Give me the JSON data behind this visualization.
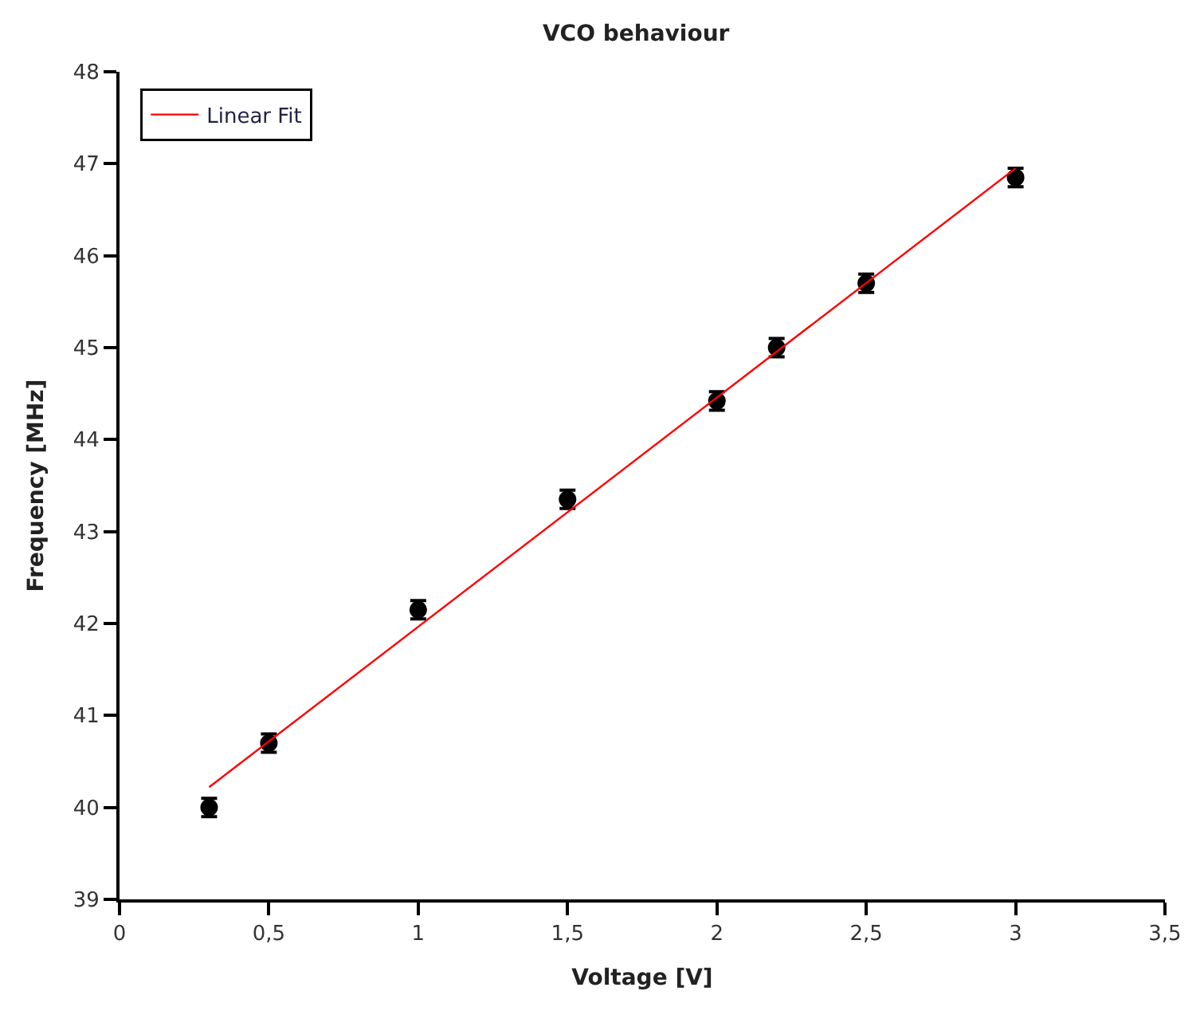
{
  "chart_data": {
    "type": "scatter",
    "title": "VCO behaviour",
    "xlabel": "Voltage [V]",
    "ylabel": "Frequency [MHz]",
    "xlim": [
      0,
      3.5
    ],
    "xticks": [
      0,
      {
        "value": 0.5,
        "label": "0,5"
      },
      1,
      {
        "value": 1.5,
        "label": "1,5"
      },
      2,
      {
        "value": 2.5,
        "label": "2,5"
      },
      3,
      {
        "value": 3.5,
        "label": "3,5"
      }
    ],
    "ylim": [
      39,
      48
    ],
    "yticks": [
      39,
      40,
      41,
      42,
      43,
      44,
      45,
      46,
      47,
      48
    ],
    "legend": "top left",
    "series": [
      {
        "color": "#000000",
        "x": [
          0.3,
          0.5,
          1.0,
          1.5,
          2.0,
          2.2,
          2.5,
          3.0
        ],
        "values": [
          40.0,
          40.7,
          42.15,
          43.35,
          44.42,
          45.0,
          45.7,
          46.85
        ],
        "errors": [
          0.1,
          0.1,
          0.1,
          0.1,
          0.1,
          0.1,
          0.1,
          0.1
        ]
      },
      {
        "type": "line",
        "marker": "none",
        "name": "Linear Fit",
        "color": "#ff0000",
        "x": [
          0.3,
          3.0
        ],
        "values": [
          40.22,
          46.95
        ]
      }
    ]
  }
}
